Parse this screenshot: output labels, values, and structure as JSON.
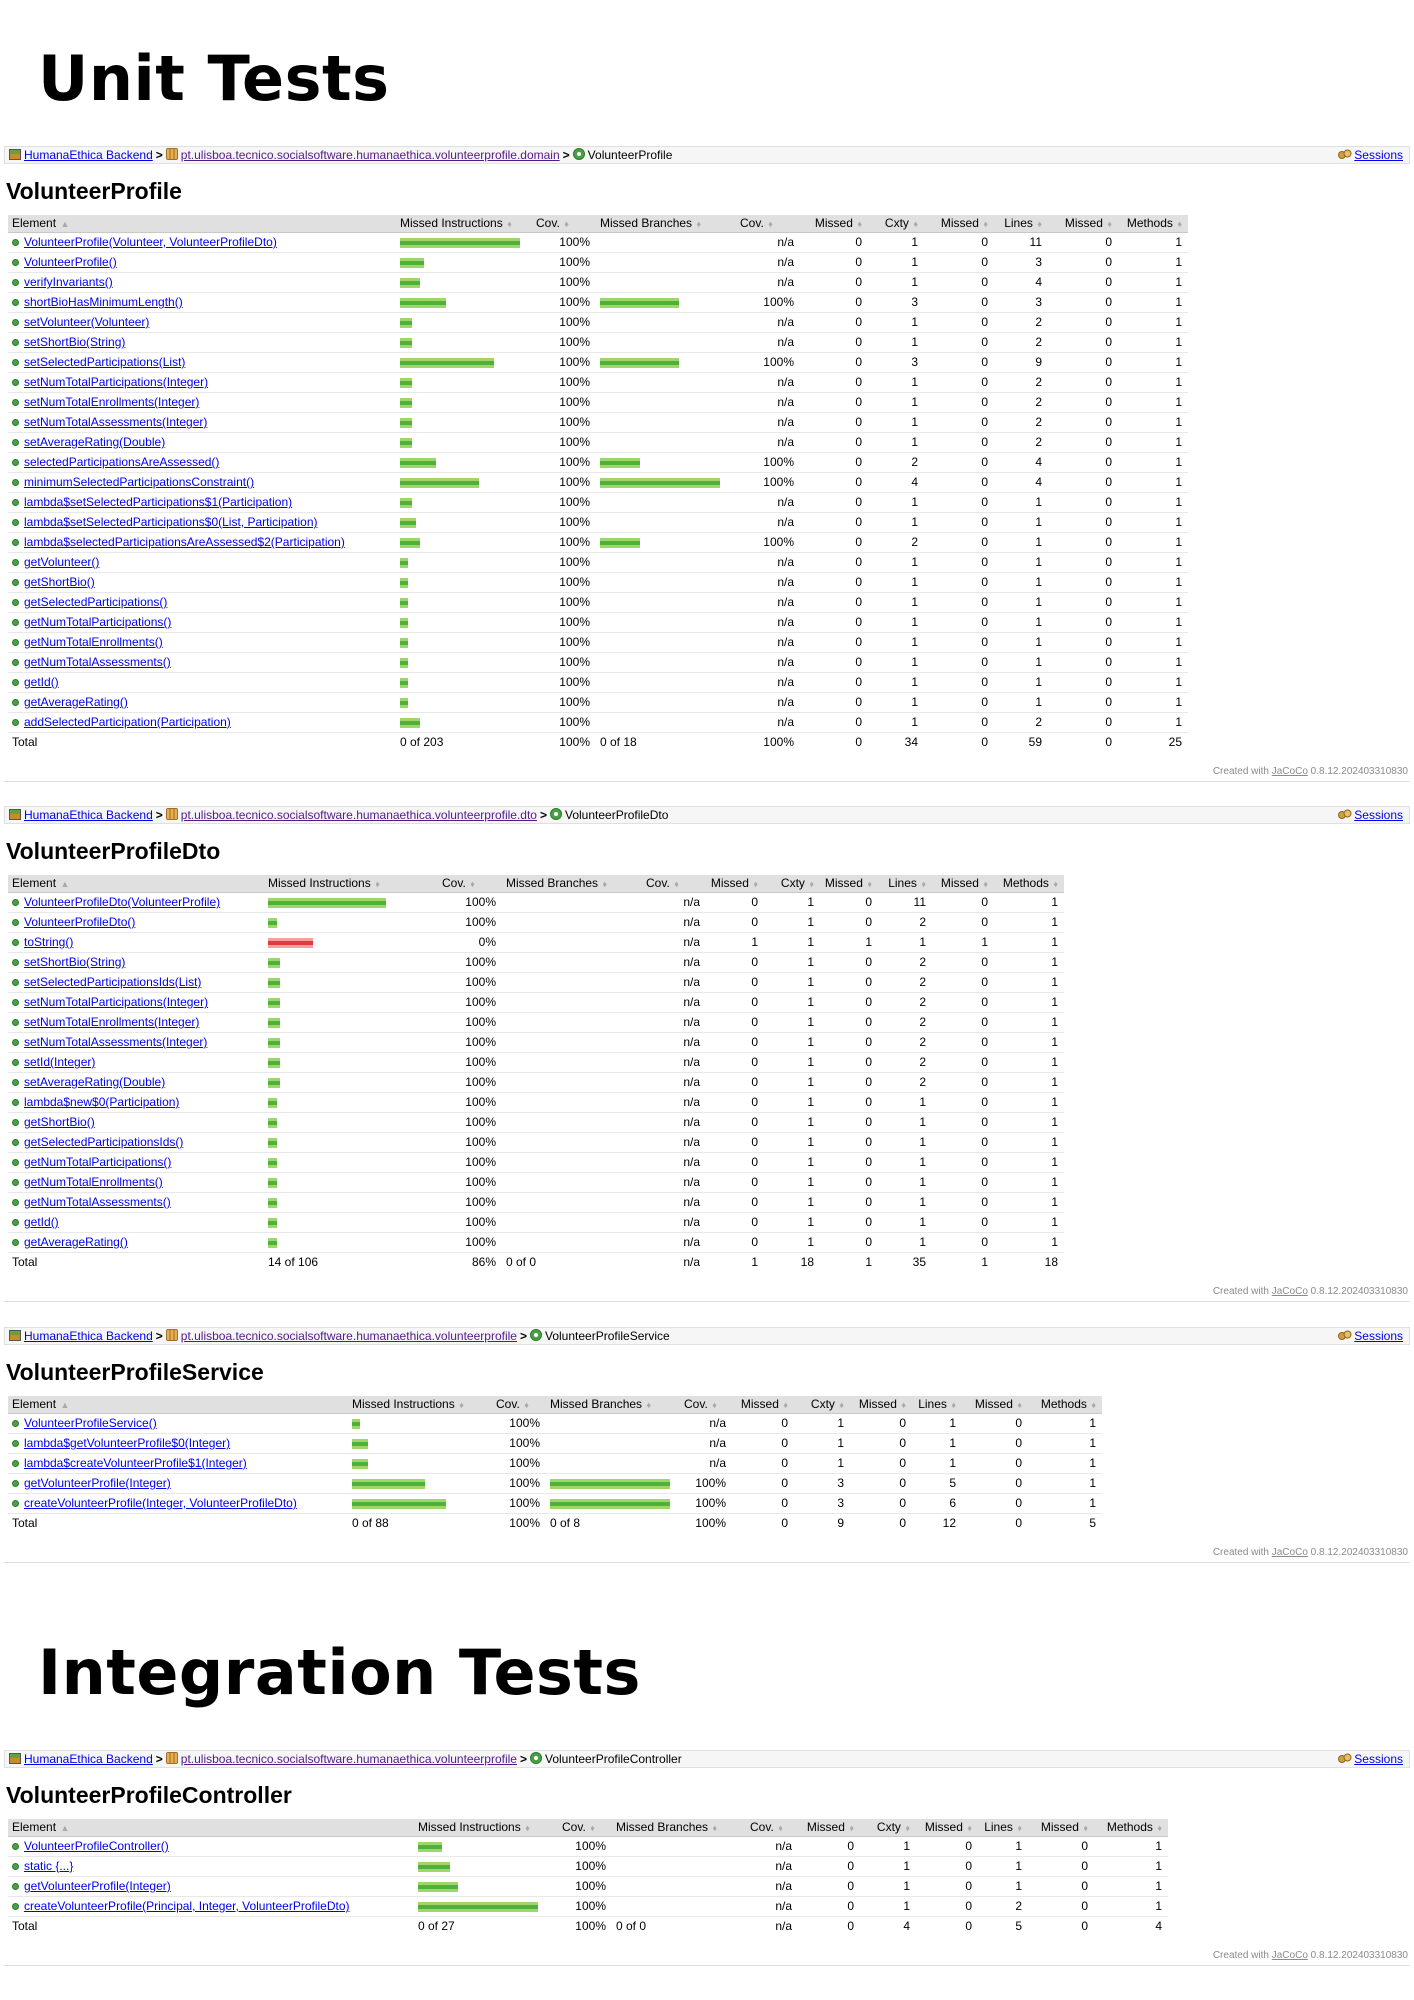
{
  "headings": {
    "unit": "Unit Tests",
    "integration": "Integration Tests"
  },
  "common": {
    "report_name": "HumanaEthica Backend",
    "sessions_label": "Sessions",
    "footer_prefix": "Created with",
    "footer_link": "JaCoCo",
    "footer_version": "0.8.12.202403310830",
    "headers": [
      "Element",
      "Missed Instructions",
      "Cov.",
      "Missed Branches",
      "Cov.",
      "Missed",
      "Cxty",
      "Missed",
      "Lines",
      "Missed",
      "Methods"
    ]
  },
  "reports": [
    {
      "package": "pt.ulisboa.tecnico.socialsoftware.humanaethica.volunteerprofile.domain",
      "class_name": "VolunteerProfile",
      "title": "VolunteerProfile",
      "rows": [
        {
          "name": "VolunteerProfile(Volunteer, VolunteerProfileDto)",
          "instr": 1.0,
          "instr_cov": "100%",
          "branch": 0,
          "branch_cov": "n/a",
          "mc": "0",
          "c": "1",
          "ml": "0",
          "l": "11",
          "mm": "0",
          "m": "1"
        },
        {
          "name": "VolunteerProfile()",
          "instr": 0.2,
          "instr_cov": "100%",
          "branch": 0,
          "branch_cov": "n/a",
          "mc": "0",
          "c": "1",
          "ml": "0",
          "l": "3",
          "mm": "0",
          "m": "1"
        },
        {
          "name": "verifyInvariants()",
          "instr": 0.17,
          "instr_cov": "100%",
          "branch": 0,
          "branch_cov": "n/a",
          "mc": "0",
          "c": "1",
          "ml": "0",
          "l": "4",
          "mm": "0",
          "m": "1"
        },
        {
          "name": "shortBioHasMinimumLength()",
          "instr": 0.38,
          "instr_cov": "100%",
          "branch": 0.66,
          "branch_cov": "100%",
          "mc": "0",
          "c": "3",
          "ml": "0",
          "l": "3",
          "mm": "0",
          "m": "1"
        },
        {
          "name": "setVolunteer(Volunteer)",
          "instr": 0.1,
          "instr_cov": "100%",
          "branch": 0,
          "branch_cov": "n/a",
          "mc": "0",
          "c": "1",
          "ml": "0",
          "l": "2",
          "mm": "0",
          "m": "1"
        },
        {
          "name": "setShortBio(String)",
          "instr": 0.1,
          "instr_cov": "100%",
          "branch": 0,
          "branch_cov": "n/a",
          "mc": "0",
          "c": "1",
          "ml": "0",
          "l": "2",
          "mm": "0",
          "m": "1"
        },
        {
          "name": "setSelectedParticipations(List)",
          "instr": 0.78,
          "instr_cov": "100%",
          "branch": 0.66,
          "branch_cov": "100%",
          "mc": "0",
          "c": "3",
          "ml": "0",
          "l": "9",
          "mm": "0",
          "m": "1"
        },
        {
          "name": "setNumTotalParticipations(Integer)",
          "instr": 0.1,
          "instr_cov": "100%",
          "branch": 0,
          "branch_cov": "n/a",
          "mc": "0",
          "c": "1",
          "ml": "0",
          "l": "2",
          "mm": "0",
          "m": "1"
        },
        {
          "name": "setNumTotalEnrollments(Integer)",
          "instr": 0.1,
          "instr_cov": "100%",
          "branch": 0,
          "branch_cov": "n/a",
          "mc": "0",
          "c": "1",
          "ml": "0",
          "l": "2",
          "mm": "0",
          "m": "1"
        },
        {
          "name": "setNumTotalAssessments(Integer)",
          "instr": 0.1,
          "instr_cov": "100%",
          "branch": 0,
          "branch_cov": "n/a",
          "mc": "0",
          "c": "1",
          "ml": "0",
          "l": "2",
          "mm": "0",
          "m": "1"
        },
        {
          "name": "setAverageRating(Double)",
          "instr": 0.1,
          "instr_cov": "100%",
          "branch": 0,
          "branch_cov": "n/a",
          "mc": "0",
          "c": "1",
          "ml": "0",
          "l": "2",
          "mm": "0",
          "m": "1"
        },
        {
          "name": "selectedParticipationsAreAssessed()",
          "instr": 0.3,
          "instr_cov": "100%",
          "branch": 0.33,
          "branch_cov": "100%",
          "mc": "0",
          "c": "2",
          "ml": "0",
          "l": "4",
          "mm": "0",
          "m": "1"
        },
        {
          "name": "minimumSelectedParticipationsConstraint()",
          "instr": 0.66,
          "instr_cov": "100%",
          "branch": 1.0,
          "branch_cov": "100%",
          "mc": "0",
          "c": "4",
          "ml": "0",
          "l": "4",
          "mm": "0",
          "m": "1"
        },
        {
          "name": "lambda$setSelectedParticipations$1(Participation)",
          "instr": 0.1,
          "instr_cov": "100%",
          "branch": 0,
          "branch_cov": "n/a",
          "mc": "0",
          "c": "1",
          "ml": "0",
          "l": "1",
          "mm": "0",
          "m": "1"
        },
        {
          "name": "lambda$setSelectedParticipations$0(List, Participation)",
          "instr": 0.13,
          "instr_cov": "100%",
          "branch": 0,
          "branch_cov": "n/a",
          "mc": "0",
          "c": "1",
          "ml": "0",
          "l": "1",
          "mm": "0",
          "m": "1"
        },
        {
          "name": "lambda$selectedParticipationsAreAssessed$2(Participation)",
          "instr": 0.17,
          "instr_cov": "100%",
          "branch": 0.33,
          "branch_cov": "100%",
          "mc": "0",
          "c": "2",
          "ml": "0",
          "l": "1",
          "mm": "0",
          "m": "1"
        },
        {
          "name": "getVolunteer()",
          "instr": 0.07,
          "instr_cov": "100%",
          "branch": 0,
          "branch_cov": "n/a",
          "mc": "0",
          "c": "1",
          "ml": "0",
          "l": "1",
          "mm": "0",
          "m": "1"
        },
        {
          "name": "getShortBio()",
          "instr": 0.07,
          "instr_cov": "100%",
          "branch": 0,
          "branch_cov": "n/a",
          "mc": "0",
          "c": "1",
          "ml": "0",
          "l": "1",
          "mm": "0",
          "m": "1"
        },
        {
          "name": "getSelectedParticipations()",
          "instr": 0.07,
          "instr_cov": "100%",
          "branch": 0,
          "branch_cov": "n/a",
          "mc": "0",
          "c": "1",
          "ml": "0",
          "l": "1",
          "mm": "0",
          "m": "1"
        },
        {
          "name": "getNumTotalParticipations()",
          "instr": 0.07,
          "instr_cov": "100%",
          "branch": 0,
          "branch_cov": "n/a",
          "mc": "0",
          "c": "1",
          "ml": "0",
          "l": "1",
          "mm": "0",
          "m": "1"
        },
        {
          "name": "getNumTotalEnrollments()",
          "instr": 0.07,
          "instr_cov": "100%",
          "branch": 0,
          "branch_cov": "n/a",
          "mc": "0",
          "c": "1",
          "ml": "0",
          "l": "1",
          "mm": "0",
          "m": "1"
        },
        {
          "name": "getNumTotalAssessments()",
          "instr": 0.07,
          "instr_cov": "100%",
          "branch": 0,
          "branch_cov": "n/a",
          "mc": "0",
          "c": "1",
          "ml": "0",
          "l": "1",
          "mm": "0",
          "m": "1"
        },
        {
          "name": "getId()",
          "instr": 0.07,
          "instr_cov": "100%",
          "branch": 0,
          "branch_cov": "n/a",
          "mc": "0",
          "c": "1",
          "ml": "0",
          "l": "1",
          "mm": "0",
          "m": "1"
        },
        {
          "name": "getAverageRating()",
          "instr": 0.07,
          "instr_cov": "100%",
          "branch": 0,
          "branch_cov": "n/a",
          "mc": "0",
          "c": "1",
          "ml": "0",
          "l": "1",
          "mm": "0",
          "m": "1"
        },
        {
          "name": "addSelectedParticipation(Participation)",
          "instr": 0.17,
          "instr_cov": "100%",
          "branch": 0,
          "branch_cov": "n/a",
          "mc": "0",
          "c": "1",
          "ml": "0",
          "l": "2",
          "mm": "0",
          "m": "1"
        }
      ],
      "total": {
        "instr": "0 of 203",
        "instr_cov": "100%",
        "branch": "0 of 18",
        "branch_cov": "100%",
        "mc": "0",
        "c": "34",
        "ml": "0",
        "l": "59",
        "mm": "0",
        "m": "25"
      }
    },
    {
      "package": "pt.ulisboa.tecnico.socialsoftware.humanaethica.volunteerprofile.dto",
      "class_name": "VolunteerProfileDto",
      "title": "VolunteerProfileDto",
      "rows": [
        {
          "name": "VolunteerProfileDto(VolunteerProfile)",
          "instr": 1.0,
          "instr_cov": "100%",
          "branch": 0,
          "branch_cov": "n/a",
          "mc": "0",
          "c": "1",
          "ml": "0",
          "l": "11",
          "mm": "0",
          "m": "1"
        },
        {
          "name": "VolunteerProfileDto()",
          "instr": 0.08,
          "instr_cov": "100%",
          "branch": 0,
          "branch_cov": "n/a",
          "mc": "0",
          "c": "1",
          "ml": "0",
          "l": "2",
          "mm": "0",
          "m": "1"
        },
        {
          "name": "toString()",
          "instr": 0.38,
          "instr_cov": "0%",
          "missed": true,
          "branch": 0,
          "branch_cov": "n/a",
          "mc": "1",
          "c": "1",
          "ml": "1",
          "l": "1",
          "mm": "1",
          "m": "1"
        },
        {
          "name": "setShortBio(String)",
          "instr": 0.1,
          "instr_cov": "100%",
          "branch": 0,
          "branch_cov": "n/a",
          "mc": "0",
          "c": "1",
          "ml": "0",
          "l": "2",
          "mm": "0",
          "m": "1"
        },
        {
          "name": "setSelectedParticipationsIds(List)",
          "instr": 0.1,
          "instr_cov": "100%",
          "branch": 0,
          "branch_cov": "n/a",
          "mc": "0",
          "c": "1",
          "ml": "0",
          "l": "2",
          "mm": "0",
          "m": "1"
        },
        {
          "name": "setNumTotalParticipations(Integer)",
          "instr": 0.1,
          "instr_cov": "100%",
          "branch": 0,
          "branch_cov": "n/a",
          "mc": "0",
          "c": "1",
          "ml": "0",
          "l": "2",
          "mm": "0",
          "m": "1"
        },
        {
          "name": "setNumTotalEnrollments(Integer)",
          "instr": 0.1,
          "instr_cov": "100%",
          "branch": 0,
          "branch_cov": "n/a",
          "mc": "0",
          "c": "1",
          "ml": "0",
          "l": "2",
          "mm": "0",
          "m": "1"
        },
        {
          "name": "setNumTotalAssessments(Integer)",
          "instr": 0.1,
          "instr_cov": "100%",
          "branch": 0,
          "branch_cov": "n/a",
          "mc": "0",
          "c": "1",
          "ml": "0",
          "l": "2",
          "mm": "0",
          "m": "1"
        },
        {
          "name": "setId(Integer)",
          "instr": 0.1,
          "instr_cov": "100%",
          "branch": 0,
          "branch_cov": "n/a",
          "mc": "0",
          "c": "1",
          "ml": "0",
          "l": "2",
          "mm": "0",
          "m": "1"
        },
        {
          "name": "setAverageRating(Double)",
          "instr": 0.1,
          "instr_cov": "100%",
          "branch": 0,
          "branch_cov": "n/a",
          "mc": "0",
          "c": "1",
          "ml": "0",
          "l": "2",
          "mm": "0",
          "m": "1"
        },
        {
          "name": "lambda$new$0(Participation)",
          "instr": 0.08,
          "instr_cov": "100%",
          "branch": 0,
          "branch_cov": "n/a",
          "mc": "0",
          "c": "1",
          "ml": "0",
          "l": "1",
          "mm": "0",
          "m": "1"
        },
        {
          "name": "getShortBio()",
          "instr": 0.08,
          "instr_cov": "100%",
          "branch": 0,
          "branch_cov": "n/a",
          "mc": "0",
          "c": "1",
          "ml": "0",
          "l": "1",
          "mm": "0",
          "m": "1"
        },
        {
          "name": "getSelectedParticipationsIds()",
          "instr": 0.08,
          "instr_cov": "100%",
          "branch": 0,
          "branch_cov": "n/a",
          "mc": "0",
          "c": "1",
          "ml": "0",
          "l": "1",
          "mm": "0",
          "m": "1"
        },
        {
          "name": "getNumTotalParticipations()",
          "instr": 0.08,
          "instr_cov": "100%",
          "branch": 0,
          "branch_cov": "n/a",
          "mc": "0",
          "c": "1",
          "ml": "0",
          "l": "1",
          "mm": "0",
          "m": "1"
        },
        {
          "name": "getNumTotalEnrollments()",
          "instr": 0.08,
          "instr_cov": "100%",
          "branch": 0,
          "branch_cov": "n/a",
          "mc": "0",
          "c": "1",
          "ml": "0",
          "l": "1",
          "mm": "0",
          "m": "1"
        },
        {
          "name": "getNumTotalAssessments()",
          "instr": 0.08,
          "instr_cov": "100%",
          "branch": 0,
          "branch_cov": "n/a",
          "mc": "0",
          "c": "1",
          "ml": "0",
          "l": "1",
          "mm": "0",
          "m": "1"
        },
        {
          "name": "getId()",
          "instr": 0.08,
          "instr_cov": "100%",
          "branch": 0,
          "branch_cov": "n/a",
          "mc": "0",
          "c": "1",
          "ml": "0",
          "l": "1",
          "mm": "0",
          "m": "1"
        },
        {
          "name": "getAverageRating()",
          "instr": 0.08,
          "instr_cov": "100%",
          "branch": 0,
          "branch_cov": "n/a",
          "mc": "0",
          "c": "1",
          "ml": "0",
          "l": "1",
          "mm": "0",
          "m": "1"
        }
      ],
      "total": {
        "instr": "14 of 106",
        "instr_cov": "86%",
        "branch": "0 of 0",
        "branch_cov": "n/a",
        "mc": "1",
        "c": "18",
        "ml": "1",
        "l": "35",
        "mm": "1",
        "m": "18"
      }
    },
    {
      "package": "pt.ulisboa.tecnico.socialsoftware.humanaethica.volunteerprofile",
      "class_name": "VolunteerProfileService",
      "title": "VolunteerProfileService",
      "rows": [
        {
          "name": "VolunteerProfileService()",
          "instr": 0.08,
          "instr_cov": "100%",
          "branch": 0,
          "branch_cov": "n/a",
          "mc": "0",
          "c": "1",
          "ml": "0",
          "l": "1",
          "mm": "0",
          "m": "1"
        },
        {
          "name": "lambda$getVolunteerProfile$0(Integer)",
          "instr": 0.17,
          "instr_cov": "100%",
          "branch": 0,
          "branch_cov": "n/a",
          "mc": "0",
          "c": "1",
          "ml": "0",
          "l": "1",
          "mm": "0",
          "m": "1"
        },
        {
          "name": "lambda$createVolunteerProfile$1(Integer)",
          "instr": 0.17,
          "instr_cov": "100%",
          "branch": 0,
          "branch_cov": "n/a",
          "mc": "0",
          "c": "1",
          "ml": "0",
          "l": "1",
          "mm": "0",
          "m": "1"
        },
        {
          "name": "getVolunteerProfile(Integer)",
          "instr": 0.78,
          "instr_cov": "100%",
          "branch": 1.0,
          "branch_cov": "100%",
          "mc": "0",
          "c": "3",
          "ml": "0",
          "l": "5",
          "mm": "0",
          "m": "1"
        },
        {
          "name": "createVolunteerProfile(Integer, VolunteerProfileDto)",
          "instr": 1.0,
          "instr_cov": "100%",
          "branch": 1.0,
          "branch_cov": "100%",
          "mc": "0",
          "c": "3",
          "ml": "0",
          "l": "6",
          "mm": "0",
          "m": "1"
        }
      ],
      "total": {
        "instr": "0 of 88",
        "instr_cov": "100%",
        "branch": "0 of 8",
        "branch_cov": "100%",
        "mc": "0",
        "c": "9",
        "ml": "0",
        "l": "12",
        "mm": "0",
        "m": "5"
      }
    },
    {
      "package": "pt.ulisboa.tecnico.socialsoftware.humanaethica.volunteerprofile",
      "class_name": "VolunteerProfileController",
      "title": "VolunteerProfileController",
      "rows": [
        {
          "name": "VolunteerProfileController()",
          "instr": 0.2,
          "instr_cov": "100%",
          "branch": 0,
          "branch_cov": "n/a",
          "mc": "0",
          "c": "1",
          "ml": "0",
          "l": "1",
          "mm": "0",
          "m": "1"
        },
        {
          "name": "static {...}",
          "instr": 0.27,
          "instr_cov": "100%",
          "branch": 0,
          "branch_cov": "n/a",
          "mc": "0",
          "c": "1",
          "ml": "0",
          "l": "1",
          "mm": "0",
          "m": "1"
        },
        {
          "name": "getVolunteerProfile(Integer)",
          "instr": 0.33,
          "instr_cov": "100%",
          "branch": 0,
          "branch_cov": "n/a",
          "mc": "0",
          "c": "1",
          "ml": "0",
          "l": "1",
          "mm": "0",
          "m": "1"
        },
        {
          "name": "createVolunteerProfile(Principal, Integer, VolunteerProfileDto)",
          "instr": 1.0,
          "instr_cov": "100%",
          "branch": 0,
          "branch_cov": "n/a",
          "mc": "0",
          "c": "1",
          "ml": "0",
          "l": "2",
          "mm": "0",
          "m": "1"
        }
      ],
      "total": {
        "instr": "0 of 27",
        "instr_cov": "100%",
        "branch": "0 of 0",
        "branch_cov": "n/a",
        "mc": "0",
        "c": "4",
        "ml": "0",
        "l": "5",
        "mm": "0",
        "m": "4"
      }
    }
  ]
}
